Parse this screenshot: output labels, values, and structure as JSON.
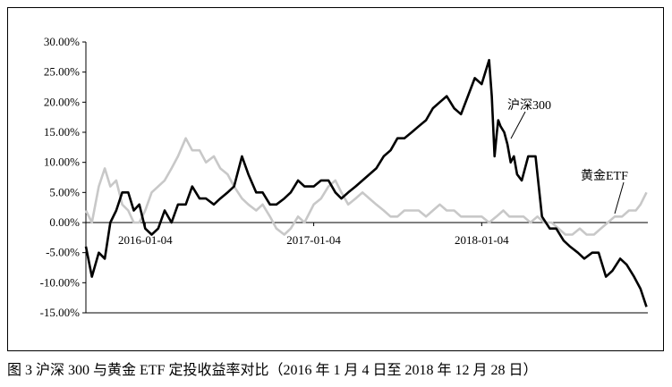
{
  "caption": "图 3  沪深 300 与黄金 ETF 定投收益率对比（2016 年 1 月 4 日至 2018 年 12 月 28 日）",
  "chart_data": {
    "type": "line",
    "title": "",
    "xlabel": "",
    "ylabel": "",
    "ylim": [
      -0.15,
      0.3
    ],
    "y_ticks": [
      0.3,
      0.25,
      0.2,
      0.15,
      0.1,
      0.05,
      0.0,
      -0.05,
      -0.1,
      -0.15
    ],
    "y_tick_labels": [
      "30.00%",
      "25.00%",
      "20.00%",
      "15.00%",
      "10.00%",
      "5.00%",
      "0.00%",
      "-5.00%",
      "-10.00%",
      "-15.00%"
    ],
    "x_ticks": [
      "2016-01-04",
      "2017-01-04",
      "2018-01-04"
    ],
    "xlim": [
      "2015-08-28",
      "2018-12-31"
    ],
    "grid": false,
    "series": [
      {
        "name": "沪深300",
        "color": "#000000",
        "x": [
          "2015-08-28",
          "2015-09-10",
          "2015-09-25",
          "2015-10-08",
          "2015-10-20",
          "2015-11-02",
          "2015-11-15",
          "2015-11-28",
          "2015-12-10",
          "2015-12-22",
          "2016-01-04",
          "2016-01-18",
          "2016-02-01",
          "2016-02-15",
          "2016-03-01",
          "2016-03-15",
          "2016-04-01",
          "2016-04-15",
          "2016-05-01",
          "2016-05-15",
          "2016-06-01",
          "2016-06-15",
          "2016-07-01",
          "2016-07-15",
          "2016-08-01",
          "2016-08-15",
          "2016-09-01",
          "2016-09-15",
          "2016-10-01",
          "2016-10-15",
          "2016-11-01",
          "2016-11-15",
          "2016-12-01",
          "2016-12-15",
          "2017-01-04",
          "2017-01-20",
          "2017-02-05",
          "2017-02-20",
          "2017-03-05",
          "2017-03-20",
          "2017-04-05",
          "2017-04-20",
          "2017-05-05",
          "2017-05-20",
          "2017-06-05",
          "2017-06-20",
          "2017-07-05",
          "2017-07-20",
          "2017-08-05",
          "2017-08-20",
          "2017-09-05",
          "2017-09-20",
          "2017-10-05",
          "2017-10-20",
          "2017-11-05",
          "2017-11-20",
          "2017-12-05",
          "2017-12-20",
          "2018-01-04",
          "2018-01-12",
          "2018-01-20",
          "2018-01-26",
          "2018-02-01",
          "2018-02-06",
          "2018-02-09",
          "2018-02-14",
          "2018-02-22",
          "2018-03-01",
          "2018-03-08",
          "2018-03-15",
          "2018-03-22",
          "2018-04-01",
          "2018-04-15",
          "2018-05-01",
          "2018-05-15",
          "2018-06-01",
          "2018-06-15",
          "2018-07-01",
          "2018-07-15",
          "2018-08-01",
          "2018-08-15",
          "2018-09-01",
          "2018-09-15",
          "2018-10-01",
          "2018-10-15",
          "2018-11-01",
          "2018-11-15",
          "2018-12-01",
          "2018-12-15",
          "2018-12-28"
        ],
        "values": [
          -0.04,
          -0.09,
          -0.05,
          -0.06,
          0.0,
          0.02,
          0.05,
          0.05,
          0.02,
          0.03,
          -0.01,
          -0.02,
          -0.01,
          0.02,
          0.0,
          0.03,
          0.03,
          0.06,
          0.04,
          0.04,
          0.03,
          0.04,
          0.05,
          0.06,
          0.11,
          0.08,
          0.05,
          0.05,
          0.03,
          0.03,
          0.04,
          0.05,
          0.07,
          0.06,
          0.06,
          0.07,
          0.07,
          0.05,
          0.04,
          0.05,
          0.06,
          0.07,
          0.08,
          0.09,
          0.11,
          0.12,
          0.14,
          0.14,
          0.15,
          0.16,
          0.17,
          0.19,
          0.2,
          0.21,
          0.19,
          0.18,
          0.21,
          0.24,
          0.23,
          0.25,
          0.27,
          0.21,
          0.11,
          0.15,
          0.17,
          0.16,
          0.15,
          0.13,
          0.1,
          0.11,
          0.08,
          0.07,
          0.11,
          0.11,
          0.01,
          -0.01,
          -0.01,
          -0.03,
          -0.04,
          -0.05,
          -0.06,
          -0.05,
          -0.05,
          -0.09,
          -0.08,
          -0.06,
          -0.07,
          -0.09,
          -0.11,
          -0.14
        ]
      },
      {
        "name": "黄金ETF",
        "color": "#c8c8c8",
        "x": [
          "2015-08-28",
          "2015-09-10",
          "2015-09-25",
          "2015-10-08",
          "2015-10-20",
          "2015-11-02",
          "2015-11-15",
          "2015-11-28",
          "2015-12-10",
          "2015-12-22",
          "2016-01-04",
          "2016-01-18",
          "2016-02-01",
          "2016-02-15",
          "2016-03-01",
          "2016-03-15",
          "2016-04-01",
          "2016-04-15",
          "2016-05-01",
          "2016-05-15",
          "2016-06-01",
          "2016-06-15",
          "2016-07-01",
          "2016-07-15",
          "2016-08-01",
          "2016-08-15",
          "2016-09-01",
          "2016-09-15",
          "2016-10-01",
          "2016-10-15",
          "2016-11-01",
          "2016-11-15",
          "2016-12-01",
          "2016-12-15",
          "2017-01-04",
          "2017-01-20",
          "2017-02-05",
          "2017-02-20",
          "2017-03-05",
          "2017-03-20",
          "2017-04-05",
          "2017-04-20",
          "2017-05-05",
          "2017-05-20",
          "2017-06-05",
          "2017-06-20",
          "2017-07-05",
          "2017-07-20",
          "2017-08-05",
          "2017-08-20",
          "2017-09-05",
          "2017-09-20",
          "2017-10-05",
          "2017-10-20",
          "2017-11-05",
          "2017-11-20",
          "2017-12-05",
          "2017-12-20",
          "2018-01-04",
          "2018-01-20",
          "2018-02-05",
          "2018-02-20",
          "2018-03-05",
          "2018-03-20",
          "2018-04-05",
          "2018-04-20",
          "2018-05-05",
          "2018-05-20",
          "2018-06-05",
          "2018-06-20",
          "2018-07-05",
          "2018-07-20",
          "2018-08-05",
          "2018-08-20",
          "2018-09-05",
          "2018-09-20",
          "2018-10-05",
          "2018-10-20",
          "2018-11-05",
          "2018-11-20",
          "2018-12-05",
          "2018-12-15",
          "2018-12-28"
        ],
        "values": [
          0.02,
          0.0,
          0.06,
          0.09,
          0.06,
          0.07,
          0.03,
          0.02,
          0.0,
          0.0,
          0.02,
          0.05,
          0.06,
          0.07,
          0.09,
          0.11,
          0.14,
          0.12,
          0.12,
          0.1,
          0.11,
          0.09,
          0.08,
          0.06,
          0.04,
          0.03,
          0.02,
          0.03,
          0.01,
          -0.01,
          -0.02,
          -0.01,
          0.01,
          0.0,
          0.03,
          0.04,
          0.06,
          0.07,
          0.05,
          0.03,
          0.04,
          0.05,
          0.04,
          0.03,
          0.02,
          0.01,
          0.01,
          0.02,
          0.02,
          0.02,
          0.01,
          0.02,
          0.03,
          0.02,
          0.02,
          0.01,
          0.01,
          0.01,
          0.01,
          0.0,
          0.01,
          0.02,
          0.01,
          0.01,
          0.01,
          0.0,
          0.01,
          0.0,
          0.0,
          -0.01,
          -0.02,
          -0.02,
          -0.01,
          -0.02,
          -0.02,
          -0.01,
          0.0,
          0.01,
          0.01,
          0.02,
          0.02,
          0.03,
          0.05
        ]
      }
    ],
    "annotations": [
      {
        "text": "沪深300",
        "series": "沪深300"
      },
      {
        "text": "黄金ETF",
        "series": "黄金ETF"
      }
    ]
  }
}
